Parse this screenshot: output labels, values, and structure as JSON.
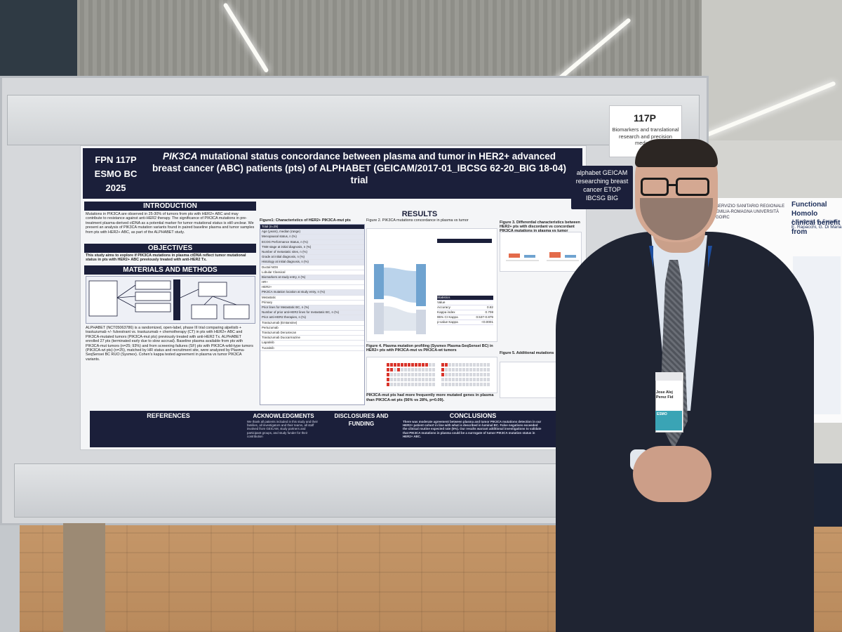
{
  "poster": {
    "id_label": "FPN 117P",
    "conference": "ESMO BC",
    "year": "2025",
    "title_gene": "PIK3CA",
    "title_rest": "mutational status concordance between plasma and tumor in HER2+ advanced breast cancer (ABC) patients (pts) of ALPHABET (GEICAM/2017-01_IBCSG 62-20_BIG 18-04) trial",
    "sections": {
      "introduction": "INTRODUCTION",
      "objectives": "OBJECTIVES",
      "materials": "MATERIALS AND METHODS",
      "results": "RESULTS",
      "references": "REFERENCES",
      "acknowledgments": "ACKNOWLEDGMENTS",
      "disclosures": "DISCLOSURES AND FUNDING",
      "conclusions": "CONCLUSIONS"
    },
    "figure2_title": "Figure 2. PIK3CA mutations concordance in plasma vs tumor",
    "figure3_title": "Figure 3. Differential characteristics between HER2+ pts with discordant vs concordant PIK3CA mutations in plasma vs tumor",
    "figure4_title": "Figure 4. Plasma mutation profiling (Sysmex Plasma-SeqSensei BC) in HER2+ pts with PIK3CA-mut vs PIK3CA-wt tumors",
    "figure4_note": "PIK3CA-mut pts had more frequently more mutated genes in plasma than PIK3CA-wt pts (56% vs 28%, p=0.09).",
    "figure5_title": "Figure 5. Additional mutations",
    "table1_title": "Figure1: Characteristics of HER2+ PIK3CA-mut pts",
    "table1_header": "Total (n=29)",
    "table1_rows": [
      "Age (years), median (range)",
      "Menopausal status, n (%)",
      "ECOG Performance Status, n (%)",
      "TNM stage at initial diagnosis, n (%)",
      "Number of metastatic sites, n (%)",
      "Grade at initial diagnosis, n (%)",
      "Histology at initial diagnosis, n (%)",
      "Ductal NOS",
      "Lobular Classical",
      "Biomarkers at study entry, n (%)",
      "HR+",
      "HER2+",
      "PIK3CA mutation location at study entry, n (%)",
      "Metastatic",
      "Primary",
      "Prior lines for Metastatic BC, n (%)",
      "Number of prior anti-HER2 lines for metastatic BC, n (%)",
      "Prior anti-HER2 therapies, n (%)",
      "Trastuzumab (Emtansine)",
      "Pertuzumab",
      "Trastuzumab Deruxtecan",
      "Trastuzumab Duocarmazine",
      "Lapatinib",
      "Tucatinib"
    ],
    "stats_labels": [
      "Statistics",
      "Value",
      "Accuracy",
      "Kappa index",
      "95% CI Kappa",
      "p-value Kappa"
    ],
    "stats_values": [
      "",
      "",
      "0.82",
      "0.708",
      "0.537-0.879",
      "<0.0001"
    ],
    "intro_text": "Mutations in PIK3CA are observed in 25-30% of tumors from pts with HER2+ ABC and may contribute to resistance against anti-HER2 therapy. The significance of PIK3CA mutations in pre-treatment plasma-derived ctDNA as a potential marker for tumor mutational status is still unclear. We present an analysis of PIK3CA mutation variants found in paired baseline plasma and tumor samples from pts with HER2+ ABC, as part of the ALPHABET study.",
    "objective_text": "This study aims to explore if PIK3CA mutations in plasma ctDNA reflect tumor mutational status in pts with HER2+ ABC previously treated with anti-HER2 Tx.",
    "methods_text": "ALPHABET (NCT05063786) is a randomized, open-label, phase III trial comparing alpelisib + trastuzumab +/- fulvestrant vs. trastuzumab + chemotherapy (CT) in pts with HER2+ ABC and PIK3CA-mutated tumors (PIK3CA-mut pts) previously treated with anti-HER2 Tx. ALPHABET enrolled 27 pts (terminated early due to slow accrual). Baseline plasma available from pts with PIK3CA-mut tumors (n=25; 93%) and from screening failures (SF) pts with PIK3CA-wild-type tumors (PIK3CA-wt pts) (n=25), matched by HR status and recruitment site, were analyzed by Plasma-SeqSensei BC RUO (Sysmex). Cohen's kappa tested agreement in plasma vs tumor PIK3CA variants.",
    "conclusions_text": "There was moderate agreement between plasma and tumor PIK3CA mutations detection in our HER2+ patient cohort in line with what is described in luminal BC. False negatives exceeded the clinical routine expected rate (5%). Our results warrant additional investigations to validate that PIK3CA mutations in plasma could be a surrogate of tumor PIK3CA mutation status in HER2+ ABC.",
    "ack_text": "We thank all patients included in this study and their families, all investigators and their teams, all staff involved from GEICAM, study partners and participant groups, and study funder for their contribution",
    "logo_text": "alphabet GEICAM researching breast cancer ETOP IBCSG BIG"
  },
  "poster_number_card": {
    "number": "117P",
    "subtitle": "Biomarkers and translational research and precision medicine"
  },
  "neighbor_poster": {
    "title": "Functional Homolo clinical benefit from",
    "authors": "A. Lazzarin, C. Fornali, E. Rapacchi, G. Di Maria",
    "logos": "SERVIZIO SANITARIO REGIONALE EMILIA-ROMAGNA UNIVERSITÀ GOIRC"
  },
  "badge": {
    "name": "Jose Alej Perez Fid",
    "event": "ESMO"
  },
  "colors": {
    "poster_navy": "#1b1f3a",
    "lanyard_blue": "#1e4fa0",
    "suit": "#1f2432",
    "floor": "#c89a6c"
  }
}
